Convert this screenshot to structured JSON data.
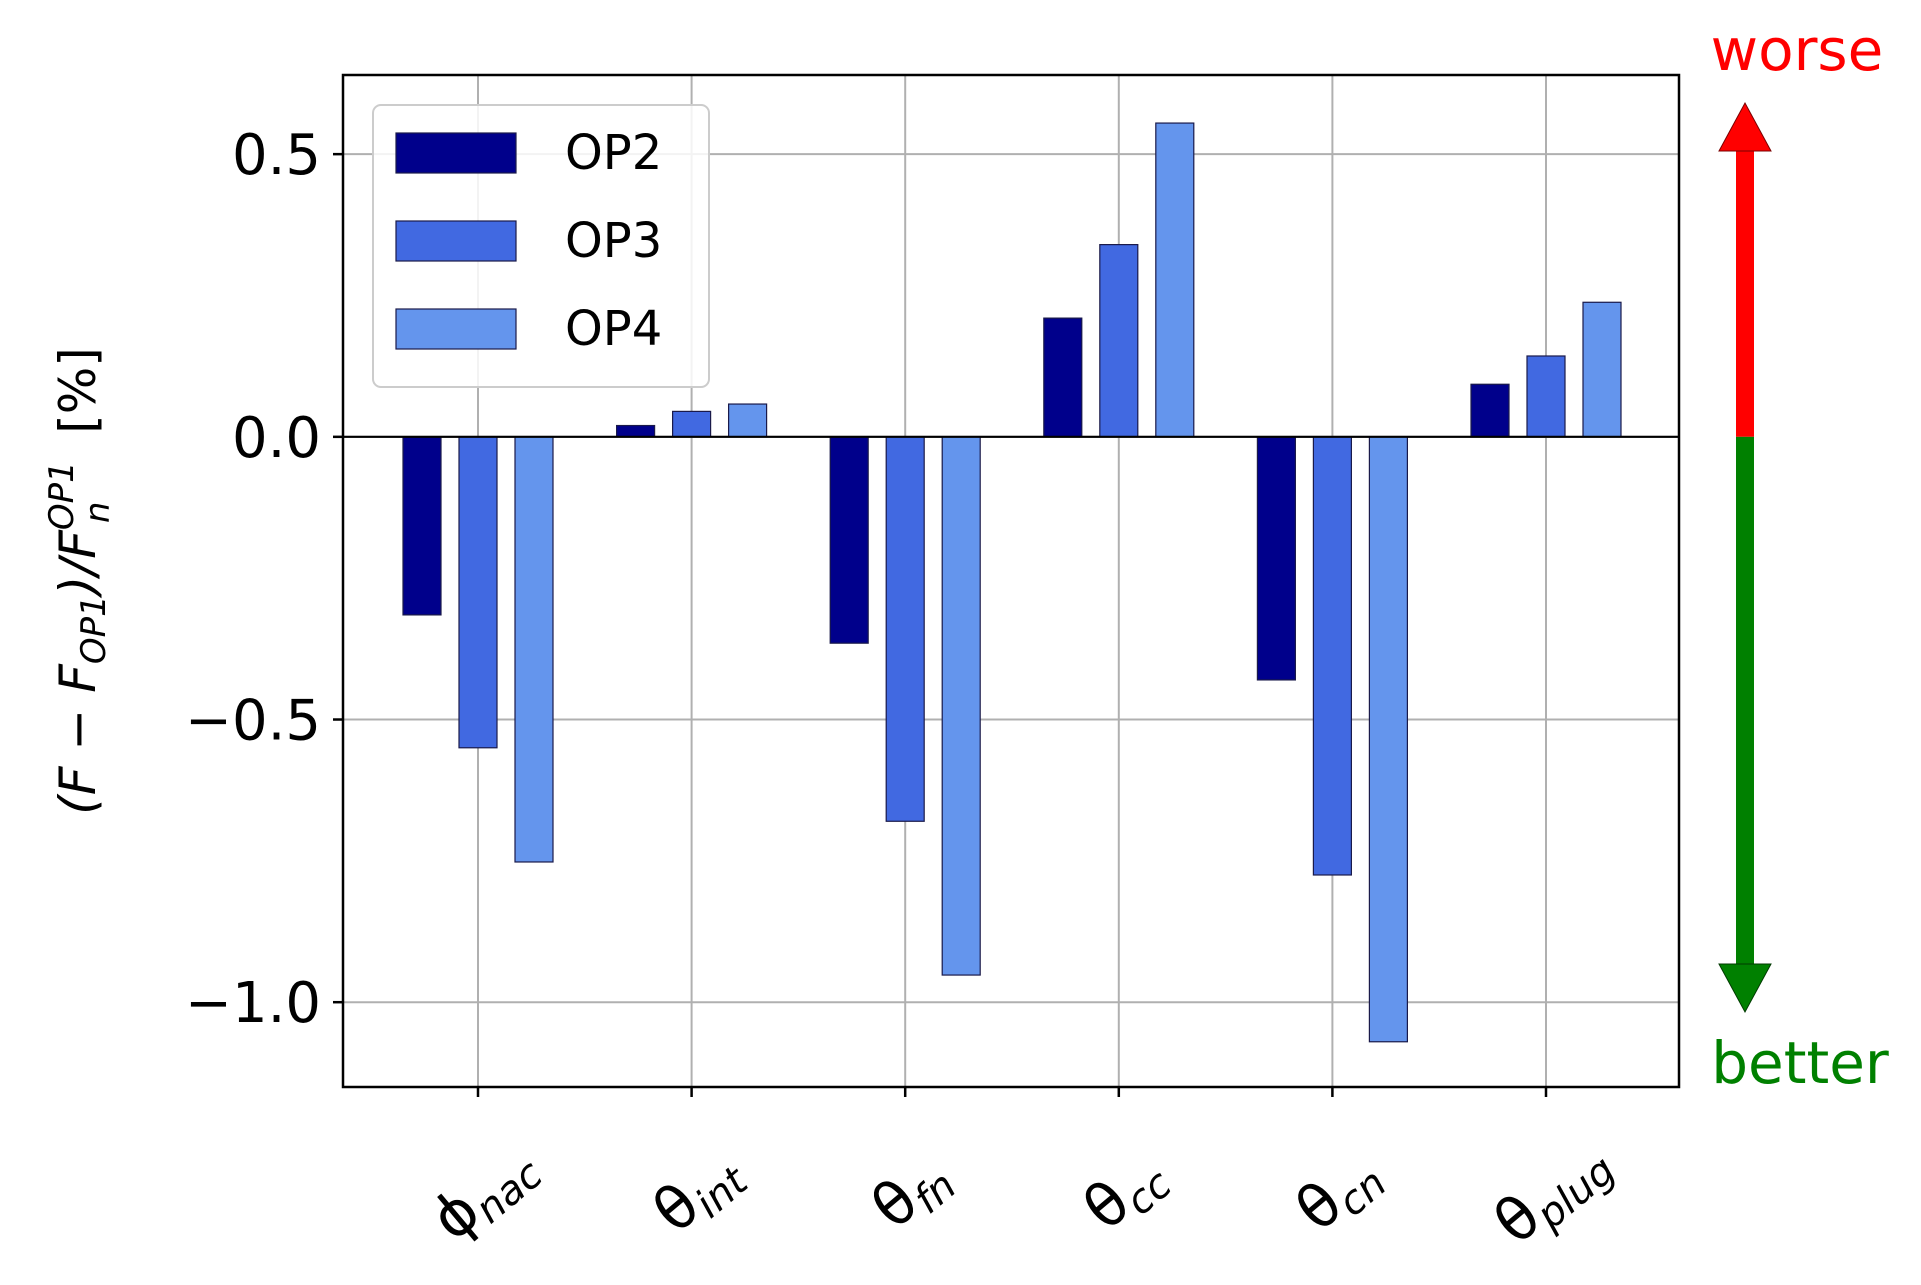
{
  "chart_data": {
    "type": "bar",
    "categories": [
      {
        "base": "ϕ",
        "sub": "nac"
      },
      {
        "base": "θ",
        "sub": "int"
      },
      {
        "base": "θ",
        "sub": "fn"
      },
      {
        "base": "θ",
        "sub": "cc"
      },
      {
        "base": "θ",
        "sub": "cn"
      },
      {
        "base": "θ",
        "sub": "plug"
      }
    ],
    "series": [
      {
        "name": "OP2",
        "color": "#00008b",
        "values": [
          -0.315,
          0.02,
          -0.365,
          0.21,
          -0.43,
          0.093
        ]
      },
      {
        "name": "OP3",
        "color": "#4169e1",
        "values": [
          -0.55,
          0.045,
          -0.68,
          0.34,
          -0.775,
          0.143
        ]
      },
      {
        "name": "OP4",
        "color": "#6495ed",
        "values": [
          -0.752,
          0.058,
          -0.952,
          0.555,
          -1.07,
          0.238
        ]
      }
    ],
    "ylabel": {
      "lead": "(F − F",
      "sub1": "OP1",
      "mid": ")/F",
      "sub2": "n",
      "sup": "OP1",
      "unit": " [%]"
    },
    "ylim": [
      -1.15,
      0.64
    ],
    "yticks": [
      -1.0,
      -0.5,
      0.0,
      0.5
    ],
    "ytick_labels": [
      "−1.0",
      "−0.5",
      "0.0",
      "0.5"
    ],
    "grid": true,
    "legend_position": "top-left",
    "annotations": {
      "worse": {
        "text": "worse",
        "color": "#ff0000"
      },
      "better": {
        "text": "better",
        "color": "#008000"
      }
    }
  }
}
